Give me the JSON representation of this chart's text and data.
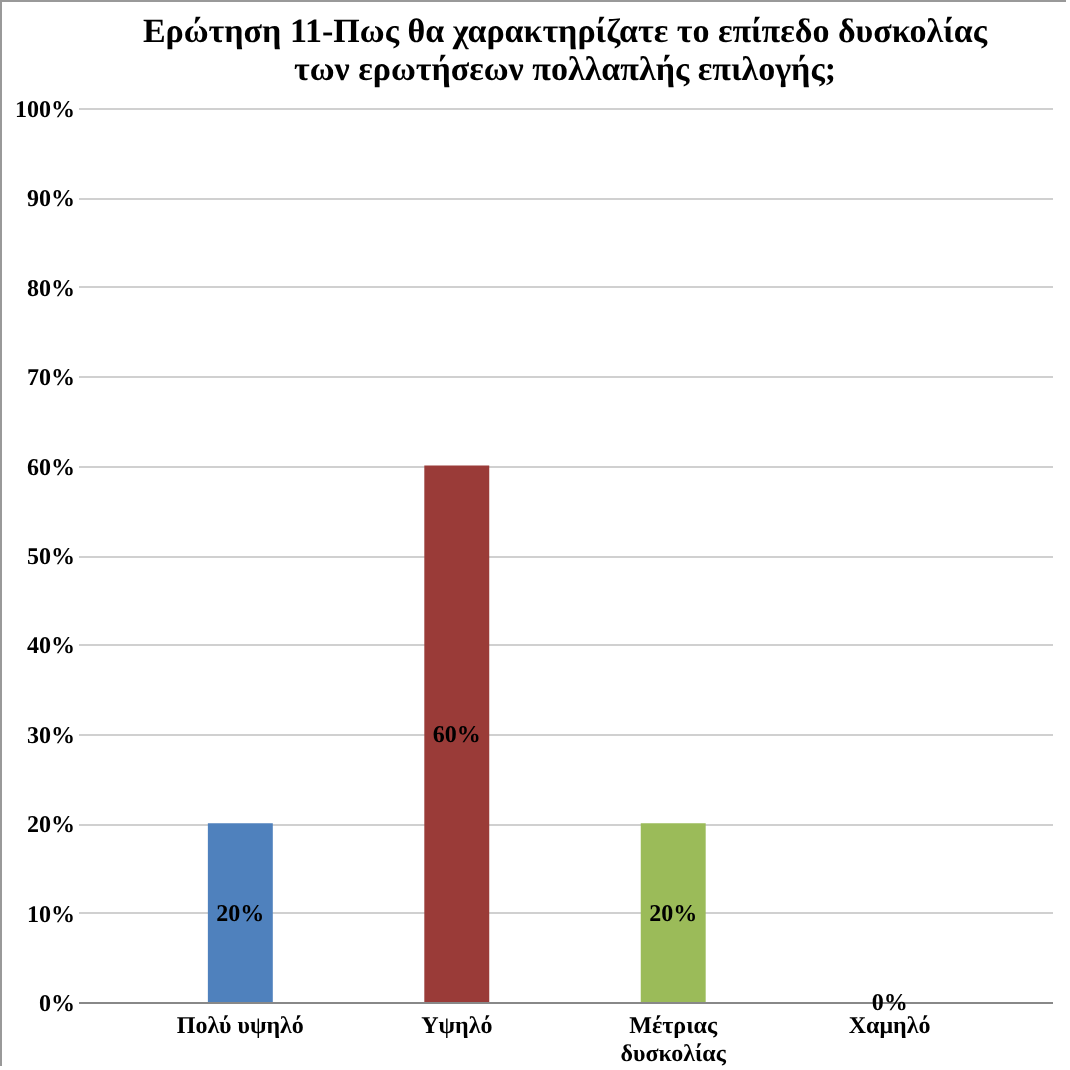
{
  "chart_data": {
    "type": "bar",
    "title": "Ερώτηση 11-Πως θα χαρακτηρίζατε το επίπεδο δυσκολίας των ερωτήσεων πολλαπλής επιλογής;",
    "categories": [
      "Πολύ υψηλό",
      "Υψηλό",
      "Μέτριας δυσκολίας",
      "Χαμηλό"
    ],
    "values": [
      20,
      60,
      20,
      0
    ],
    "colors": [
      "#4f81bd",
      "#9a3b38",
      "#9bbb59",
      "#8064a2"
    ],
    "value_labels": [
      "20%",
      "60%",
      "20%",
      "0%"
    ],
    "ylim": [
      0,
      100
    ],
    "yticks": [
      {
        "value": 0,
        "label": "0%"
      },
      {
        "value": 10,
        "label": "10%"
      },
      {
        "value": 20,
        "label": "20%"
      },
      {
        "value": 30,
        "label": "30%"
      },
      {
        "value": 40,
        "label": "40%"
      },
      {
        "value": 50,
        "label": "50%"
      },
      {
        "value": 60,
        "label": "60%"
      },
      {
        "value": 70,
        "label": "70%"
      },
      {
        "value": 80,
        "label": "80%"
      },
      {
        "value": 90,
        "label": "90%"
      },
      {
        "value": 100,
        "label": "100%"
      }
    ],
    "grid": "y",
    "legend": false
  }
}
